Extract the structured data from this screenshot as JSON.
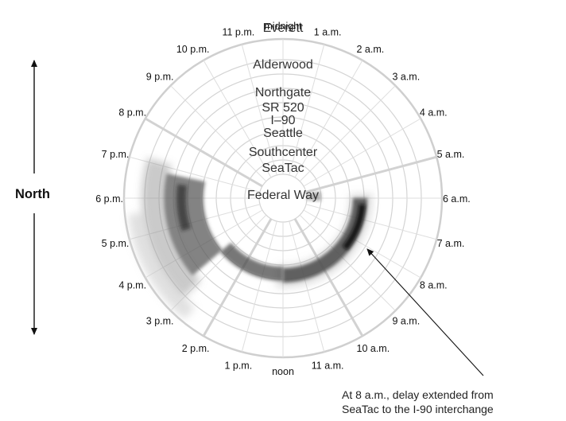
{
  "chart_data": {
    "type": "radial",
    "hours": [
      "midnight",
      "1 a.m.",
      "2 a.m.",
      "3 a.m.",
      "4 a.m.",
      "5 a.m.",
      "6 a.m.",
      "7 a.m.",
      "8 a.m.",
      "9 a.m.",
      "10 a.m.",
      "11 a.m.",
      "noon",
      "1 p.m.",
      "2 p.m.",
      "3 p.m.",
      "4 p.m.",
      "5 p.m.",
      "6 p.m.",
      "7 p.m.",
      "8 p.m.",
      "9 p.m.",
      "10 p.m.",
      "11 p.m."
    ],
    "locations": [
      "Federal Way",
      "SeaTac",
      "Southcenter",
      "Seattle",
      "I–90",
      "SR 520",
      "Northgate",
      "Alderwood",
      "Everett"
    ],
    "direction_label": "North",
    "annotation": [
      "At 8 a.m., delay extended from",
      "SeaTac to the I-90 interchange"
    ],
    "highlighted_hours": [
      "5 a.m.",
      "10 a.m.",
      "2 p.m.",
      "8 p.m."
    ],
    "colors": {
      "ring": "#d4d4d4",
      "spoke_major": "#d2d2d2",
      "delay": "#3a3a3a"
    }
  }
}
